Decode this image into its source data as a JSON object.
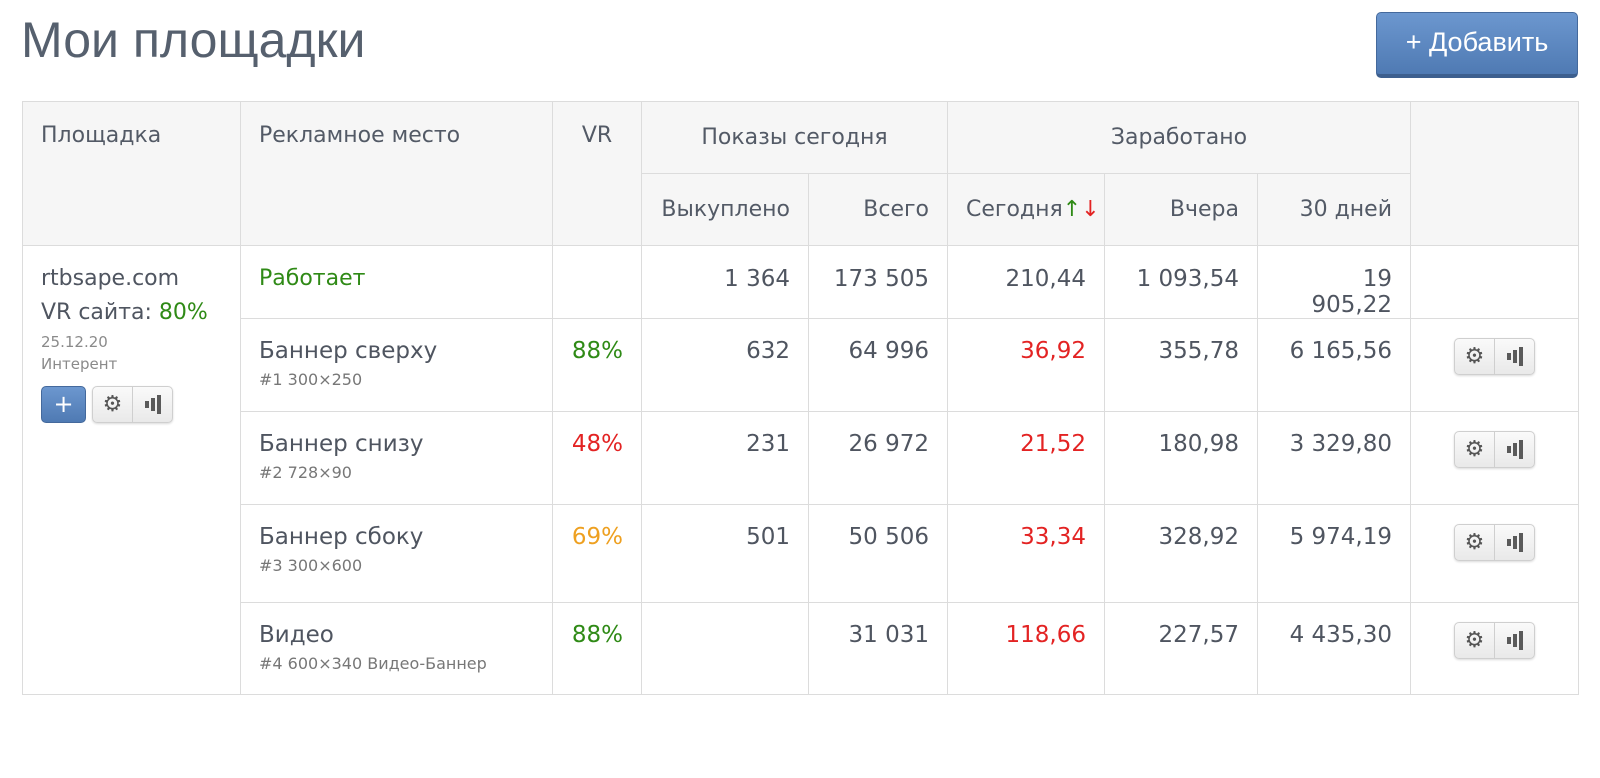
{
  "page": {
    "title": "Мои площадки",
    "add_button": "+ Добавить"
  },
  "table": {
    "headers": {
      "site": "Площадка",
      "ad_place": "Рекламное место",
      "vr": "VR",
      "impressions_group": "Показы сегодня",
      "bought": "Выкуплено",
      "total": "Всего",
      "earned_group": "Заработано",
      "today": "Сегодня",
      "sort_arrows": "↑↓",
      "yesterday": "Вчера",
      "days30": "30 дней"
    },
    "site": {
      "name": "rtbsape.com",
      "vr_label": "VR сайта:",
      "vr_value": "80%",
      "date": "25.12.20",
      "category": "Интерент",
      "status": "Работает",
      "bought": "1 364",
      "total": "173 505",
      "today": "210,44",
      "yesterday": "1 093,54",
      "days30": "19 905,22"
    },
    "banners": [
      {
        "name": "Баннер сверху",
        "sub": "#1 300×250",
        "vr": "88%",
        "bought": "632",
        "total": "64 996",
        "today": "36,92",
        "yesterday": "355,78",
        "days30": "6 165,56"
      },
      {
        "name": "Баннер снизу",
        "sub": "#2 728×90",
        "vr": "48%",
        "bought": "231",
        "total": "26 972",
        "today": "21,52",
        "yesterday": "180,98",
        "days30": "3 329,80"
      },
      {
        "name": "Баннер сбоку",
        "sub": "#3 300×600",
        "vr": "69%",
        "bought": "501",
        "total": "50 506",
        "today": "33,34",
        "yesterday": "328,92",
        "days30": "5 974,19"
      },
      {
        "name": "Видео",
        "sub": "#4 600×340 Видео-Баннер",
        "vr": "88%",
        "bought": "",
        "total": "31 031",
        "today": "118,66",
        "yesterday": "227,57",
        "days30": "4 435,30"
      }
    ],
    "icons": {
      "plus": "+",
      "settings": "gear-icon",
      "stats": "bar-chart-icon"
    }
  },
  "colors": {
    "accent": "#5b86c0",
    "green": "#2f8a16",
    "red": "#e32323",
    "orange": "#eea020"
  }
}
